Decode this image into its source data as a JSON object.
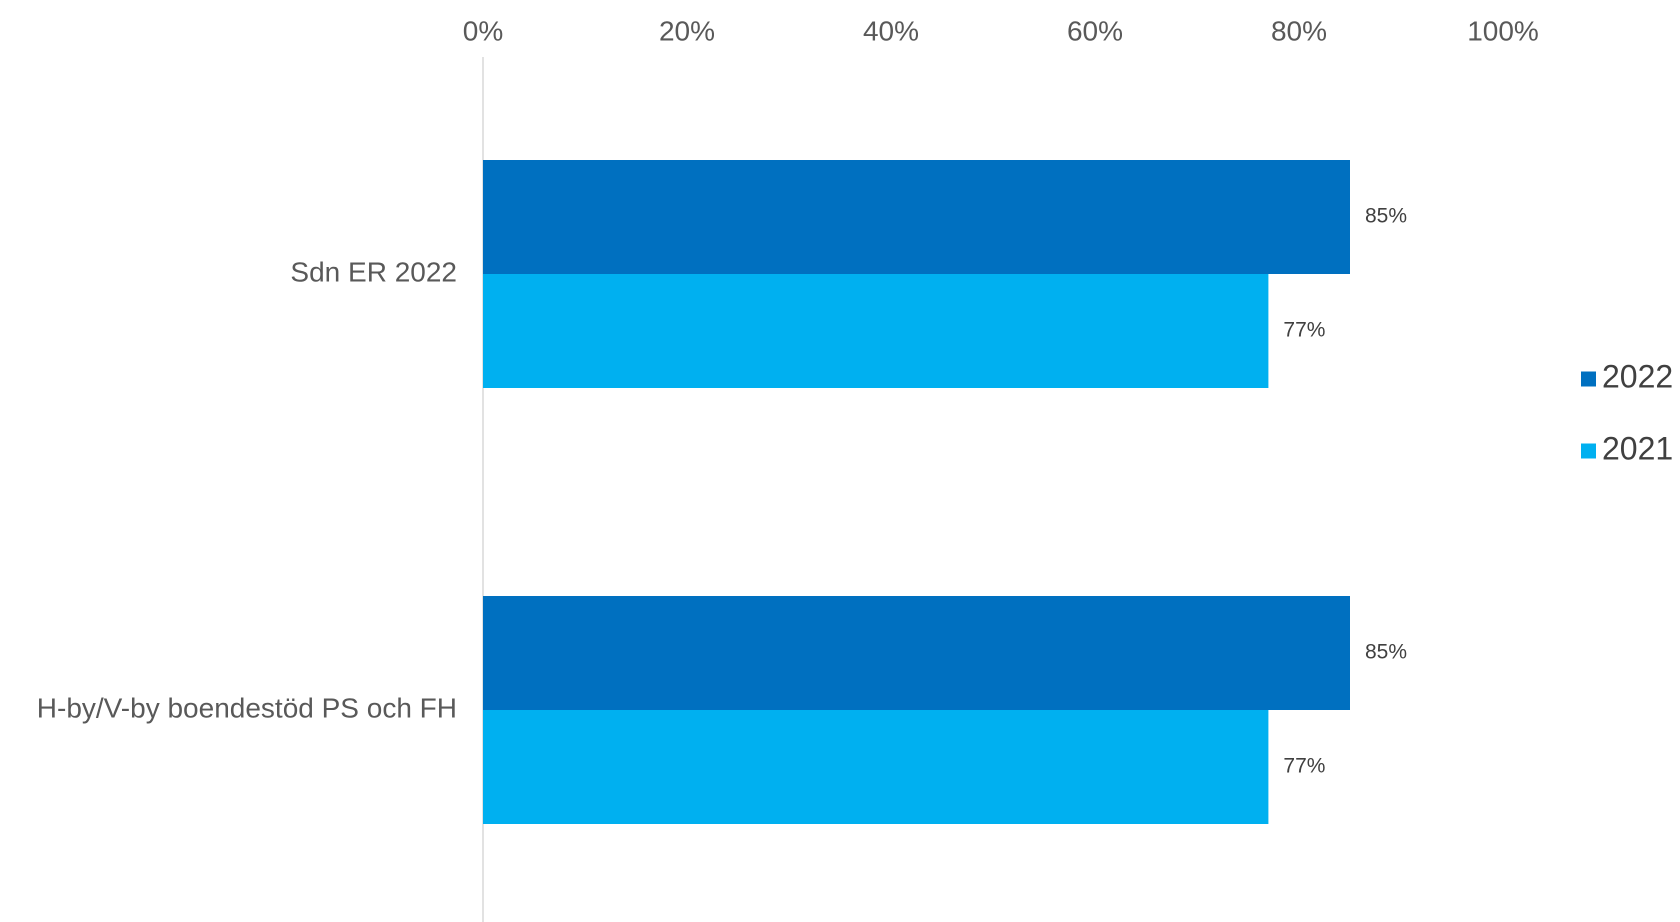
{
  "chart_data": {
    "type": "bar",
    "orientation": "horizontal",
    "categories": [
      "Sdn ER 2022",
      "H-by/V-by boendestöd PS och FH"
    ],
    "series": [
      {
        "name": "2022",
        "values": [
          85,
          85
        ],
        "color": "#0070C0",
        "labels": [
          "85%",
          "85%"
        ]
      },
      {
        "name": "2021",
        "values": [
          77,
          77
        ],
        "color": "#00B0F0",
        "labels": [
          "77%",
          "77%"
        ]
      }
    ],
    "xaxis": {
      "min": 0,
      "max": 100,
      "position": "top",
      "ticks": [
        0,
        20,
        40,
        60,
        80,
        100
      ],
      "tick_labels": [
        "0%",
        "20%",
        "40%",
        "60%",
        "80%",
        "100%"
      ]
    },
    "grid": false,
    "legend": {
      "position": "right"
    },
    "axis_line_color": "#D9D9D9"
  }
}
